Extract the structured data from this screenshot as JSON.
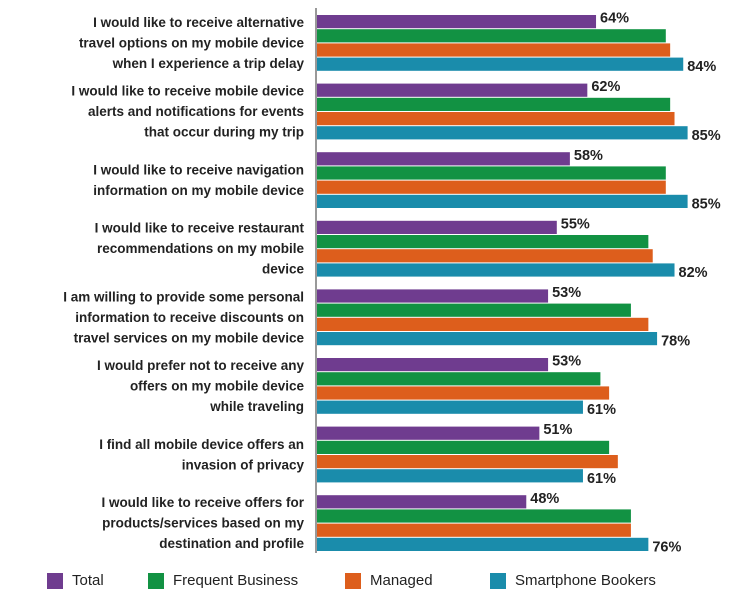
{
  "chart_data": {
    "type": "bar",
    "orientation": "horizontal",
    "categories": [
      [
        "I would like to receive alternative",
        "travel options on my mobile device",
        "when I experience a trip delay"
      ],
      [
        "I would like to receive mobile device",
        "alerts and notifications for events",
        "that occur during my trip"
      ],
      [
        "I would like to receive navigation",
        "information on my mobile device"
      ],
      [
        "I would like to receive restaurant",
        "recommendations on my mobile",
        "device"
      ],
      [
        "I am willing to provide some personal",
        "information to receive discounts on",
        "travel services on my mobile device"
      ],
      [
        "I would prefer not to receive any",
        "offers on my mobile device",
        "while traveling"
      ],
      [
        "I find all mobile device offers an",
        "invasion of privacy"
      ],
      [
        "I would like to receive offers for",
        "products/services based on my",
        "destination and profile"
      ]
    ],
    "series": [
      {
        "name": "Total",
        "color": "#6f3c8f",
        "values": [
          64,
          62,
          58,
          55,
          53,
          53,
          51,
          48
        ],
        "labels": [
          "64%",
          "62%",
          "58%",
          "55%",
          "53%",
          "53%",
          "51%",
          "48%"
        ]
      },
      {
        "name": "Frequent Business",
        "color": "#129243",
        "values": [
          80,
          81,
          80,
          76,
          72,
          65,
          67,
          72
        ],
        "labels": []
      },
      {
        "name": "Managed",
        "color": "#dd5e1c",
        "values": [
          81,
          82,
          80,
          77,
          76,
          67,
          69,
          72
        ],
        "labels": []
      },
      {
        "name": "Smartphone Bookers",
        "color": "#1a8cab",
        "values": [
          84,
          85,
          85,
          82,
          78,
          61,
          61,
          76
        ],
        "labels": [
          "84%",
          "85%",
          "85%",
          "82%",
          "78%",
          "61%",
          "61%",
          "76%"
        ]
      }
    ],
    "xlim": [
      0,
      100
    ],
    "grid": false,
    "legend_position": "bottom"
  }
}
